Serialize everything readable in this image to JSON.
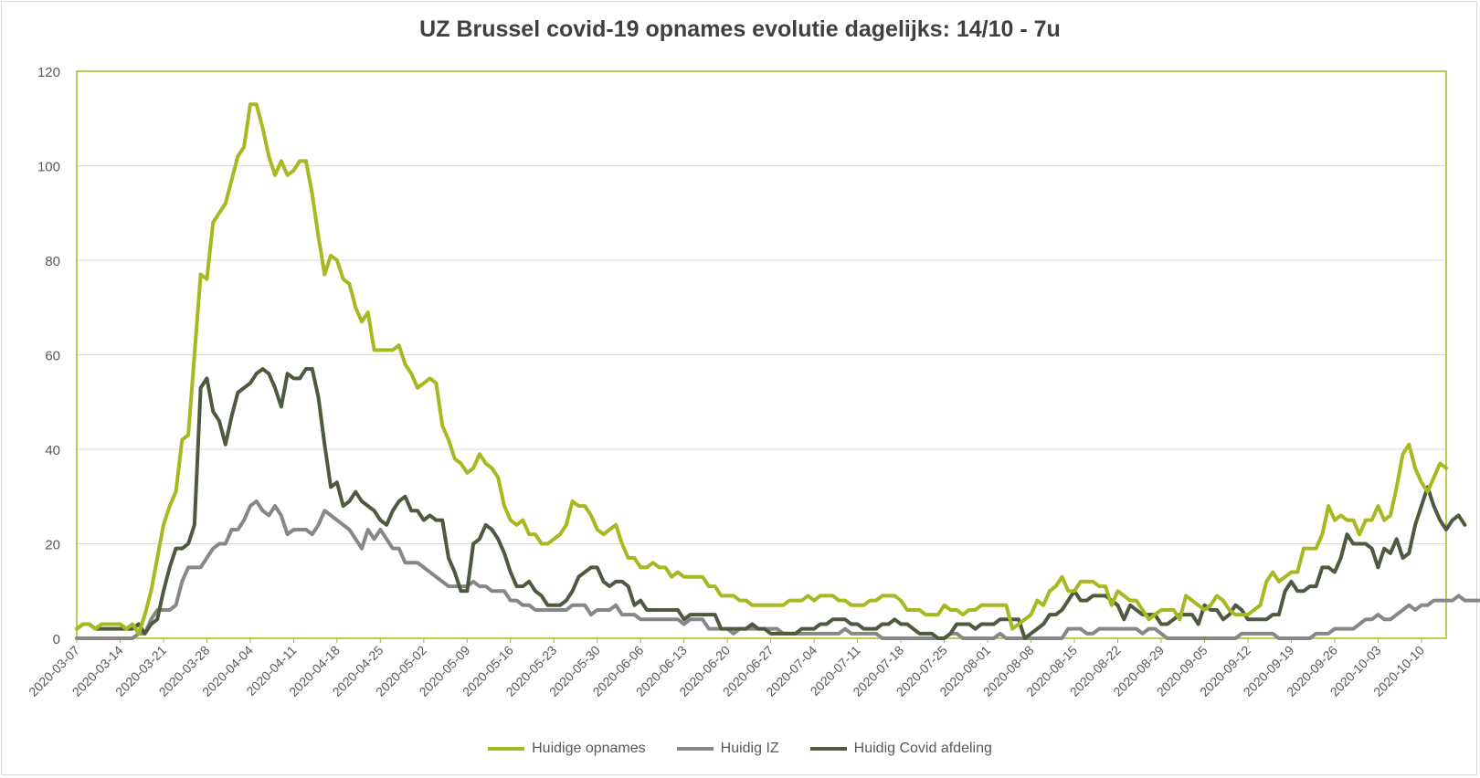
{
  "chart_data": {
    "type": "line",
    "title": "UZ Brussel covid-19 opnames evolutie dagelijks: 14/10 - 7u",
    "xlabel": "",
    "ylabel": "",
    "ylim": [
      0,
      120
    ],
    "yticks": [
      0,
      20,
      40,
      60,
      80,
      100,
      120
    ],
    "start_date": "2020-03-07",
    "x_tick_labels": [
      "2020-03-07",
      "2020-03-14",
      "2020-03-21",
      "2020-03-28",
      "2020-04-04",
      "2020-04-11",
      "2020-04-18",
      "2020-04-25",
      "2020-05-02",
      "2020-05-09",
      "2020-05-16",
      "2020-05-23",
      "2020-05-30",
      "2020-06-06",
      "2020-06-13",
      "2020-06-20",
      "2020-06-27",
      "2020-07-04",
      "2020-07-11",
      "2020-07-18",
      "2020-07-25",
      "2020-08-01",
      "2020-08-08",
      "2020-08-15",
      "2020-08-22",
      "2020-08-29",
      "2020-09-05",
      "2020-09-12",
      "2020-09-19",
      "2020-09-26",
      "2020-10-03",
      "2020-10-10"
    ],
    "grid": "horizontal",
    "legend_position": "bottom",
    "series": [
      {
        "name": "Huidige opnames",
        "color": "#a8b820",
        "values": [
          2,
          3,
          3,
          2,
          3,
          3,
          3,
          3,
          2,
          3,
          1,
          5,
          10,
          17,
          24,
          28,
          31,
          42,
          43,
          60,
          77,
          76,
          88,
          90,
          92,
          97,
          102,
          104,
          113,
          113,
          108,
          102,
          98,
          101,
          98,
          99,
          101,
          101,
          94,
          85,
          77,
          81,
          80,
          76,
          75,
          70,
          67,
          69,
          61,
          61,
          61,
          61,
          62,
          58,
          56,
          53,
          54,
          55,
          54,
          45,
          42,
          38,
          37,
          35,
          36,
          39,
          37,
          36,
          34,
          28,
          25,
          24,
          25,
          22,
          22,
          20,
          20,
          21,
          22,
          24,
          29,
          28,
          28,
          26,
          23,
          22,
          23,
          24,
          20,
          17,
          17,
          15,
          15,
          16,
          15,
          15,
          13,
          14,
          13,
          13,
          13,
          13,
          11,
          11,
          9,
          9,
          9,
          8,
          8,
          7,
          7,
          7,
          7,
          7,
          7,
          8,
          8,
          8,
          9,
          8,
          9,
          9,
          9,
          8,
          8,
          7,
          7,
          7,
          8,
          8,
          9,
          9,
          9,
          8,
          6,
          6,
          6,
          5,
          5,
          5,
          7,
          6,
          6,
          5,
          6,
          6,
          7,
          7,
          7,
          7,
          7,
          2,
          3,
          4,
          5,
          8,
          7,
          10,
          11,
          13,
          10,
          10,
          12,
          12,
          12,
          11,
          11,
          7,
          10,
          9,
          8,
          8,
          6,
          4,
          5,
          6,
          6,
          6,
          4,
          9,
          8,
          7,
          6,
          7,
          9,
          8,
          6,
          5,
          5,
          5,
          6,
          7,
          12,
          14,
          12,
          13,
          14,
          14,
          19,
          19,
          19,
          22,
          28,
          25,
          26,
          25,
          25,
          22,
          25,
          25,
          28,
          25,
          26,
          32,
          39,
          41,
          36,
          33,
          31,
          34,
          37,
          36
        ]
      },
      {
        "name": "Huidig IZ",
        "color": "#878787",
        "values": [
          0,
          0,
          0,
          0,
          0,
          0,
          0,
          0,
          0,
          0,
          1,
          1,
          4,
          6,
          6,
          6,
          7,
          12,
          15,
          15,
          15,
          17,
          19,
          20,
          20,
          23,
          23,
          25,
          28,
          29,
          27,
          26,
          28,
          26,
          22,
          23,
          23,
          23,
          22,
          24,
          27,
          26,
          25,
          24,
          23,
          21,
          19,
          23,
          21,
          23,
          21,
          19,
          19,
          16,
          16,
          16,
          15,
          14,
          13,
          12,
          11,
          11,
          11,
          11,
          12,
          11,
          11,
          10,
          10,
          10,
          8,
          8,
          7,
          7,
          6,
          6,
          6,
          6,
          6,
          6,
          7,
          7,
          7,
          5,
          6,
          6,
          6,
          7,
          5,
          5,
          5,
          4,
          4,
          4,
          4,
          4,
          4,
          4,
          3,
          4,
          4,
          4,
          2,
          2,
          2,
          2,
          1,
          2,
          2,
          2,
          2,
          2,
          2,
          2,
          1,
          1,
          1,
          1,
          1,
          1,
          1,
          1,
          1,
          1,
          2,
          1,
          1,
          1,
          1,
          1,
          0,
          0,
          0,
          0,
          0,
          0,
          0,
          0,
          0,
          0,
          0,
          1,
          1,
          0,
          0,
          0,
          0,
          0,
          0,
          1,
          0,
          0,
          0,
          0,
          0,
          0,
          0,
          0,
          0,
          0,
          2,
          2,
          2,
          1,
          1,
          2,
          2,
          2,
          2,
          2,
          2,
          2,
          1,
          2,
          2,
          1,
          0,
          0,
          0,
          0,
          0,
          0,
          0,
          0,
          0,
          0,
          0,
          0,
          1,
          1,
          1,
          1,
          1,
          1,
          0,
          0,
          0,
          0,
          0,
          0,
          1,
          1,
          1,
          2,
          2,
          2,
          2,
          3,
          4,
          4,
          5,
          4,
          4,
          5,
          6,
          7,
          6,
          7,
          7,
          8,
          8,
          8,
          8,
          9,
          8,
          8,
          8,
          8,
          9,
          11,
          11
        ]
      },
      {
        "name": "Huidig Covid afdeling",
        "color": "#4d5a3f",
        "values": [
          2,
          3,
          3,
          2,
          2,
          2,
          2,
          2,
          2,
          2,
          3,
          1,
          3,
          4,
          10,
          15,
          19,
          19,
          20,
          24,
          53,
          55,
          48,
          46,
          41,
          47,
          52,
          53,
          54,
          56,
          57,
          56,
          53,
          49,
          56,
          55,
          55,
          57,
          57,
          51,
          41,
          32,
          33,
          28,
          29,
          31,
          29,
          28,
          27,
          25,
          24,
          27,
          29,
          30,
          27,
          27,
          25,
          26,
          25,
          25,
          17,
          14,
          10,
          10,
          20,
          21,
          24,
          23,
          21,
          18,
          14,
          11,
          11,
          12,
          10,
          9,
          7,
          7,
          7,
          8,
          10,
          13,
          14,
          15,
          15,
          12,
          11,
          12,
          12,
          11,
          7,
          8,
          6,
          6,
          6,
          6,
          6,
          6,
          4,
          5,
          5,
          5,
          5,
          5,
          2,
          2,
          2,
          2,
          2,
          3,
          2,
          2,
          1,
          1,
          1,
          1,
          1,
          2,
          2,
          2,
          3,
          3,
          4,
          4,
          4,
          3,
          3,
          2,
          2,
          2,
          3,
          3,
          4,
          3,
          3,
          2,
          1,
          1,
          1,
          0,
          0,
          1,
          3,
          3,
          3,
          2,
          3,
          3,
          3,
          4,
          4,
          4,
          4,
          0,
          1,
          2,
          3,
          5,
          5,
          6,
          8,
          10,
          8,
          8,
          9,
          9,
          9,
          8,
          7,
          4,
          7,
          6,
          5,
          5,
          5,
          3,
          3,
          4,
          5,
          5,
          5,
          3,
          7,
          6,
          6,
          4,
          5,
          7,
          6,
          4,
          4,
          4,
          4,
          5,
          5,
          10,
          12,
          10,
          10,
          11,
          11,
          15,
          15,
          14,
          17,
          22,
          20,
          20,
          20,
          19,
          15,
          19,
          18,
          21,
          17,
          18,
          24,
          28,
          32,
          28,
          25,
          23,
          25,
          26,
          24
        ]
      }
    ]
  }
}
